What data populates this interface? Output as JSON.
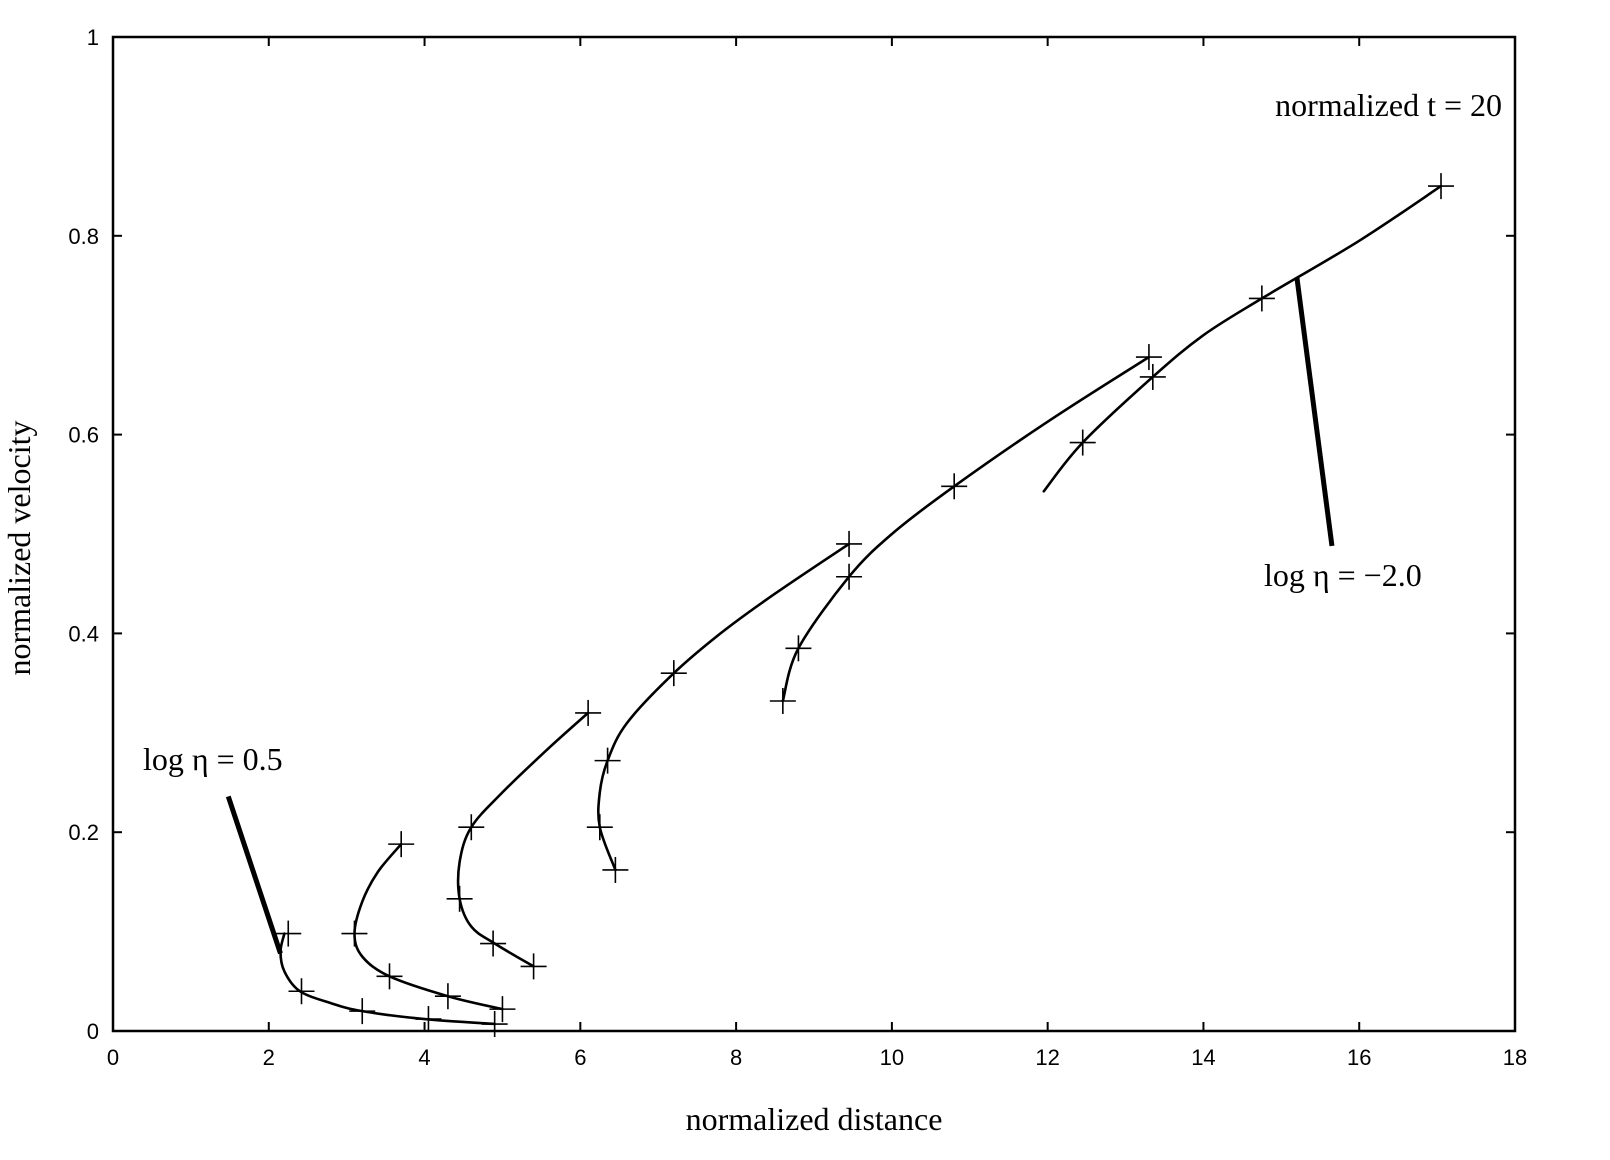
{
  "chart_data": {
    "type": "line",
    "title": "",
    "xlabel": "normalized distance",
    "ylabel": "normalized velocity",
    "xlim": [
      0,
      18
    ],
    "ylim": [
      0,
      1
    ],
    "x_ticks": [
      0,
      2,
      4,
      6,
      8,
      10,
      12,
      14,
      16,
      18
    ],
    "y_ticks": [
      0,
      0.2,
      0.4,
      0.6,
      0.8,
      1
    ],
    "x_tick_labels": [
      "0",
      "2",
      "4",
      "6",
      "8",
      "10",
      "12",
      "14",
      "16",
      "18"
    ],
    "y_tick_labels": [
      "0",
      "0.2",
      "0.4",
      "0.6",
      "0.8",
      "1"
    ],
    "grid": false,
    "legend": "none",
    "series": [
      {
        "curve": [
          [
            2.2,
            0.098
          ],
          [
            2.15,
            0.08
          ],
          [
            2.2,
            0.06
          ],
          [
            2.4,
            0.04
          ],
          [
            2.8,
            0.028
          ],
          [
            3.2,
            0.02
          ],
          [
            4.0,
            0.012
          ],
          [
            4.9,
            0.007
          ]
        ],
        "markers": [
          [
            2.25,
            0.098
          ],
          [
            2.42,
            0.04
          ],
          [
            3.2,
            0.02
          ],
          [
            4.05,
            0.012
          ],
          [
            4.9,
            0.007
          ]
        ]
      },
      {
        "curve": [
          [
            3.7,
            0.188
          ],
          [
            3.4,
            0.16
          ],
          [
            3.2,
            0.13
          ],
          [
            3.1,
            0.098
          ],
          [
            3.2,
            0.075
          ],
          [
            3.55,
            0.055
          ],
          [
            4.3,
            0.035
          ],
          [
            5.0,
            0.022
          ]
        ],
        "markers": [
          [
            3.7,
            0.188
          ],
          [
            3.1,
            0.098
          ],
          [
            3.55,
            0.055
          ],
          [
            4.3,
            0.035
          ],
          [
            5.0,
            0.022
          ]
        ]
      },
      {
        "curve": [
          [
            6.1,
            0.32
          ],
          [
            5.6,
            0.285
          ],
          [
            5.0,
            0.24
          ],
          [
            4.6,
            0.205
          ],
          [
            4.45,
            0.17
          ],
          [
            4.45,
            0.133
          ],
          [
            4.6,
            0.105
          ],
          [
            4.9,
            0.088
          ],
          [
            5.4,
            0.065
          ]
        ],
        "markers": [
          [
            6.1,
            0.32
          ],
          [
            4.6,
            0.205
          ],
          [
            4.45,
            0.133
          ],
          [
            4.88,
            0.088
          ],
          [
            5.4,
            0.065
          ]
        ]
      },
      {
        "curve": [
          [
            9.45,
            0.49
          ],
          [
            8.5,
            0.44
          ],
          [
            7.8,
            0.4
          ],
          [
            7.2,
            0.36
          ],
          [
            6.6,
            0.31
          ],
          [
            6.35,
            0.272
          ],
          [
            6.25,
            0.24
          ],
          [
            6.25,
            0.205
          ],
          [
            6.45,
            0.162
          ]
        ],
        "markers": [
          [
            9.45,
            0.49
          ],
          [
            7.2,
            0.36
          ],
          [
            6.35,
            0.272
          ],
          [
            6.25,
            0.205
          ],
          [
            6.45,
            0.162
          ]
        ]
      },
      {
        "curve": [
          [
            13.3,
            0.678
          ],
          [
            12.0,
            0.613
          ],
          [
            10.8,
            0.548
          ],
          [
            10.0,
            0.5
          ],
          [
            9.45,
            0.457
          ],
          [
            8.8,
            0.385
          ],
          [
            8.6,
            0.332
          ]
        ],
        "markers": [
          [
            13.3,
            0.678
          ],
          [
            10.8,
            0.548
          ],
          [
            9.45,
            0.457
          ],
          [
            8.8,
            0.385
          ],
          [
            8.6,
            0.332
          ]
        ]
      },
      {
        "curve": [
          [
            17.05,
            0.85
          ],
          [
            16.0,
            0.795
          ],
          [
            14.75,
            0.737
          ],
          [
            14.0,
            0.7
          ],
          [
            13.35,
            0.658
          ],
          [
            12.45,
            0.592
          ],
          [
            11.95,
            0.543
          ]
        ],
        "markers": [
          [
            17.05,
            0.85
          ],
          [
            14.75,
            0.737
          ],
          [
            13.35,
            0.658
          ],
          [
            12.45,
            0.592
          ]
        ]
      }
    ],
    "annotations": [
      {
        "text": "normalized t = 20"
      },
      {
        "text": "log η = 0.5",
        "pointer_from": [
          1.48,
          0.236
        ],
        "pointer_to": [
          2.15,
          0.078
        ]
      },
      {
        "text": "log η = −2.0",
        "pointer_from": [
          15.65,
          0.488
        ],
        "pointer_to": [
          15.2,
          0.758
        ]
      }
    ]
  }
}
